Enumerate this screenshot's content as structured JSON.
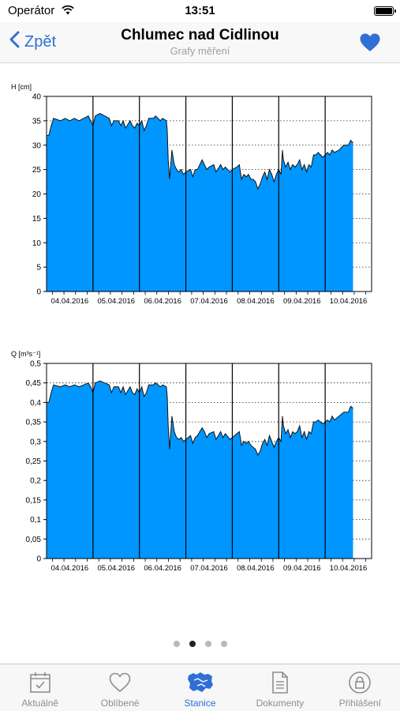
{
  "status_bar": {
    "carrier": "Operátor",
    "time": "13:51"
  },
  "nav": {
    "back_label": "Zpět",
    "title": "Chlumec nad Cidlinou",
    "subtitle": "Grafy měření",
    "favorite_icon": "heart-icon"
  },
  "colors": {
    "accent": "#2f6fd6",
    "fill": "#0096ff"
  },
  "chart_data": [
    {
      "type": "area",
      "ylabel": "H [cm]",
      "ylim": [
        0,
        40
      ],
      "yticks": [
        "0",
        "5",
        "10",
        "15",
        "20",
        "25",
        "30",
        "35",
        "40"
      ],
      "xticks": [
        "04.04.2016",
        "05.04.2016",
        "06.04.2016",
        "07.04.2016",
        "08.04.2016",
        "09.04.2016",
        "10.04.2016"
      ],
      "xlim": [
        0,
        7
      ],
      "grid": true,
      "series": [
        {
          "values": [
            [
              0,
              32
            ],
            [
              0.05,
              32
            ],
            [
              0.1,
              34
            ],
            [
              0.15,
              35.5
            ],
            [
              0.3,
              35
            ],
            [
              0.4,
              35.5
            ],
            [
              0.5,
              35
            ],
            [
              0.6,
              35.5
            ],
            [
              0.7,
              35
            ],
            [
              0.8,
              35.5
            ],
            [
              0.9,
              36
            ],
            [
              0.95,
              35
            ],
            [
              1.0,
              34
            ],
            [
              1.05,
              36
            ],
            [
              1.15,
              36.5
            ],
            [
              1.25,
              36
            ],
            [
              1.35,
              35.5
            ],
            [
              1.4,
              34
            ],
            [
              1.45,
              35
            ],
            [
              1.55,
              35
            ],
            [
              1.6,
              34
            ],
            [
              1.65,
              35
            ],
            [
              1.7,
              33.5
            ],
            [
              1.8,
              35
            ],
            [
              1.85,
              34
            ],
            [
              1.9,
              33.5
            ],
            [
              1.95,
              34.5
            ],
            [
              2.0,
              34
            ],
            [
              2.05,
              35
            ],
            [
              2.1,
              33
            ],
            [
              2.15,
              34
            ],
            [
              2.2,
              35.5
            ],
            [
              2.3,
              35.5
            ],
            [
              2.35,
              36
            ],
            [
              2.45,
              35
            ],
            [
              2.5,
              35.5
            ],
            [
              2.58,
              35
            ],
            [
              2.6,
              33
            ],
            [
              2.62,
              27
            ],
            [
              2.65,
              23
            ],
            [
              2.7,
              29
            ],
            [
              2.75,
              26
            ],
            [
              2.8,
              25
            ],
            [
              2.85,
              24.5
            ],
            [
              2.9,
              25
            ],
            [
              2.95,
              24
            ],
            [
              3.0,
              24.5
            ],
            [
              3.1,
              25
            ],
            [
              3.15,
              23.5
            ],
            [
              3.2,
              25
            ],
            [
              3.25,
              25
            ],
            [
              3.3,
              26
            ],
            [
              3.35,
              27
            ],
            [
              3.4,
              26
            ],
            [
              3.45,
              25
            ],
            [
              3.5,
              25.5
            ],
            [
              3.6,
              26
            ],
            [
              3.65,
              24.5
            ],
            [
              3.75,
              26
            ],
            [
              3.8,
              25
            ],
            [
              3.85,
              25.5
            ],
            [
              3.95,
              24.5
            ],
            [
              4.0,
              25
            ],
            [
              4.1,
              25.5
            ],
            [
              4.15,
              26
            ],
            [
              4.2,
              23
            ],
            [
              4.25,
              24
            ],
            [
              4.3,
              23.5
            ],
            [
              4.35,
              24
            ],
            [
              4.4,
              23
            ],
            [
              4.45,
              23
            ],
            [
              4.5,
              22.5
            ],
            [
              4.55,
              21
            ],
            [
              4.6,
              22
            ],
            [
              4.65,
              23.5
            ],
            [
              4.7,
              24.5
            ],
            [
              4.75,
              23
            ],
            [
              4.8,
              25
            ],
            [
              4.85,
              24
            ],
            [
              4.9,
              22.5
            ],
            [
              4.95,
              24
            ],
            [
              5.0,
              25
            ],
            [
              5.05,
              24
            ],
            [
              5.08,
              29
            ],
            [
              5.1,
              27
            ],
            [
              5.15,
              25.5
            ],
            [
              5.2,
              26.5
            ],
            [
              5.25,
              25
            ],
            [
              5.3,
              26
            ],
            [
              5.35,
              25.5
            ],
            [
              5.4,
              26
            ],
            [
              5.45,
              27
            ],
            [
              5.5,
              25
            ],
            [
              5.55,
              26
            ],
            [
              5.6,
              24.5
            ],
            [
              5.65,
              26
            ],
            [
              5.7,
              25.5
            ],
            [
              5.75,
              28
            ],
            [
              5.8,
              28
            ],
            [
              5.85,
              28.5
            ],
            [
              5.9,
              28
            ],
            [
              5.95,
              27.5
            ],
            [
              6.0,
              28
            ],
            [
              6.05,
              28.5
            ],
            [
              6.1,
              28
            ],
            [
              6.15,
              29
            ],
            [
              6.2,
              28.5
            ],
            [
              6.3,
              29
            ],
            [
              6.4,
              30
            ],
            [
              6.5,
              30
            ],
            [
              6.55,
              31
            ],
            [
              6.6,
              30.5
            ]
          ]
        }
      ]
    },
    {
      "type": "area",
      "ylabel": "Q [m³s⁻¹]",
      "ylim": [
        0,
        0.5
      ],
      "yticks": [
        "0",
        "0,05",
        "0,1",
        "0,15",
        "0,2",
        "0,25",
        "0,3",
        "0,35",
        "0,4",
        "0,45",
        "0,5"
      ],
      "xticks": [
        "04.04.2016",
        "05.04.2016",
        "06.04.2016",
        "07.04.2016",
        "08.04.2016",
        "09.04.2016",
        "10.04.2016"
      ],
      "xlim": [
        0,
        7
      ],
      "grid": true,
      "series": [
        {
          "values": [
            [
              0,
              0.4
            ],
            [
              0.05,
              0.4
            ],
            [
              0.1,
              0.425
            ],
            [
              0.15,
              0.445
            ],
            [
              0.3,
              0.44
            ],
            [
              0.4,
              0.445
            ],
            [
              0.5,
              0.44
            ],
            [
              0.6,
              0.445
            ],
            [
              0.7,
              0.44
            ],
            [
              0.8,
              0.445
            ],
            [
              0.9,
              0.45
            ],
            [
              0.95,
              0.44
            ],
            [
              1.0,
              0.425
            ],
            [
              1.05,
              0.45
            ],
            [
              1.15,
              0.455
            ],
            [
              1.25,
              0.45
            ],
            [
              1.35,
              0.445
            ],
            [
              1.4,
              0.425
            ],
            [
              1.45,
              0.44
            ],
            [
              1.55,
              0.44
            ],
            [
              1.6,
              0.425
            ],
            [
              1.65,
              0.44
            ],
            [
              1.7,
              0.42
            ],
            [
              1.8,
              0.44
            ],
            [
              1.85,
              0.425
            ],
            [
              1.9,
              0.42
            ],
            [
              1.95,
              0.435
            ],
            [
              2.0,
              0.425
            ],
            [
              2.05,
              0.44
            ],
            [
              2.1,
              0.415
            ],
            [
              2.15,
              0.425
            ],
            [
              2.2,
              0.445
            ],
            [
              2.3,
              0.445
            ],
            [
              2.35,
              0.45
            ],
            [
              2.45,
              0.44
            ],
            [
              2.5,
              0.445
            ],
            [
              2.58,
              0.44
            ],
            [
              2.6,
              0.415
            ],
            [
              2.62,
              0.34
            ],
            [
              2.65,
              0.28
            ],
            [
              2.7,
              0.365
            ],
            [
              2.75,
              0.325
            ],
            [
              2.8,
              0.31
            ],
            [
              2.85,
              0.305
            ],
            [
              2.9,
              0.31
            ],
            [
              2.95,
              0.3
            ],
            [
              3.0,
              0.305
            ],
            [
              3.1,
              0.315
            ],
            [
              3.15,
              0.295
            ],
            [
              3.2,
              0.31
            ],
            [
              3.25,
              0.315
            ],
            [
              3.3,
              0.325
            ],
            [
              3.35,
              0.335
            ],
            [
              3.4,
              0.325
            ],
            [
              3.45,
              0.31
            ],
            [
              3.5,
              0.32
            ],
            [
              3.6,
              0.325
            ],
            [
              3.65,
              0.305
            ],
            [
              3.75,
              0.325
            ],
            [
              3.8,
              0.31
            ],
            [
              3.85,
              0.32
            ],
            [
              3.95,
              0.305
            ],
            [
              4.0,
              0.31
            ],
            [
              4.1,
              0.32
            ],
            [
              4.15,
              0.325
            ],
            [
              4.2,
              0.29
            ],
            [
              4.25,
              0.3
            ],
            [
              4.3,
              0.295
            ],
            [
              4.35,
              0.3
            ],
            [
              4.4,
              0.29
            ],
            [
              4.45,
              0.285
            ],
            [
              4.5,
              0.28
            ],
            [
              4.55,
              0.265
            ],
            [
              4.6,
              0.275
            ],
            [
              4.65,
              0.295
            ],
            [
              4.7,
              0.305
            ],
            [
              4.75,
              0.29
            ],
            [
              4.8,
              0.315
            ],
            [
              4.85,
              0.3
            ],
            [
              4.9,
              0.285
            ],
            [
              4.95,
              0.3
            ],
            [
              5.0,
              0.31
            ],
            [
              5.05,
              0.3
            ],
            [
              5.08,
              0.365
            ],
            [
              5.1,
              0.34
            ],
            [
              5.15,
              0.32
            ],
            [
              5.2,
              0.33
            ],
            [
              5.25,
              0.31
            ],
            [
              5.3,
              0.325
            ],
            [
              5.35,
              0.32
            ],
            [
              5.4,
              0.325
            ],
            [
              5.45,
              0.34
            ],
            [
              5.5,
              0.31
            ],
            [
              5.55,
              0.325
            ],
            [
              5.6,
              0.305
            ],
            [
              5.65,
              0.325
            ],
            [
              5.7,
              0.32
            ],
            [
              5.75,
              0.35
            ],
            [
              5.8,
              0.35
            ],
            [
              5.85,
              0.355
            ],
            [
              5.9,
              0.35
            ],
            [
              5.95,
              0.345
            ],
            [
              6.0,
              0.35
            ],
            [
              6.05,
              0.355
            ],
            [
              6.1,
              0.35
            ],
            [
              6.15,
              0.365
            ],
            [
              6.2,
              0.355
            ],
            [
              6.3,
              0.365
            ],
            [
              6.4,
              0.375
            ],
            [
              6.5,
              0.375
            ],
            [
              6.55,
              0.39
            ],
            [
              6.6,
              0.385
            ]
          ]
        }
      ]
    }
  ],
  "pager": {
    "count": 4,
    "active_index": 1
  },
  "tabs": [
    {
      "label": "Aktuálně",
      "icon": "calendar-check-icon",
      "active": false
    },
    {
      "label": "Oblíbené",
      "icon": "heart-outline-icon",
      "active": false
    },
    {
      "label": "Stanice",
      "icon": "map-icon",
      "active": true
    },
    {
      "label": "Dokumenty",
      "icon": "document-icon",
      "active": false
    },
    {
      "label": "Přihlášení",
      "icon": "lock-icon",
      "active": false
    }
  ]
}
